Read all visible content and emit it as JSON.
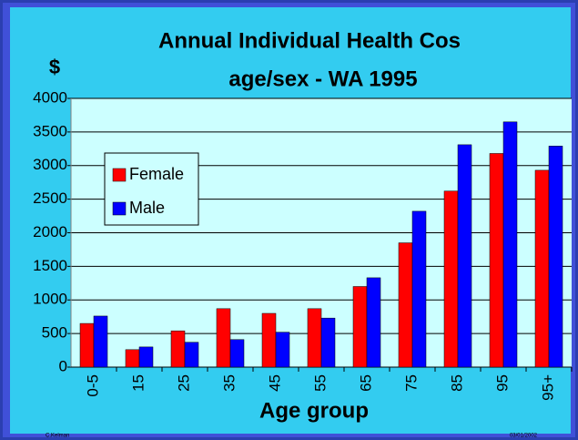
{
  "chart_data": {
    "type": "bar",
    "title_lines": [
      "Annual Individual Health Cos",
      "age/sex - WA 1995"
    ],
    "y_label": "$",
    "x_label": "Age group",
    "categories": [
      "0-5",
      "15",
      "25",
      "35",
      "45",
      "55",
      "65",
      "75",
      "85",
      "95",
      "95+"
    ],
    "series": [
      {
        "name": "Female",
        "color": "#ff0000",
        "values": [
          650,
          260,
          540,
          870,
          800,
          870,
          1200,
          1850,
          2620,
          3180,
          2930
        ]
      },
      {
        "name": "Male",
        "color": "#0000ff",
        "values": [
          760,
          300,
          370,
          410,
          520,
          730,
          1330,
          2320,
          3310,
          3650,
          3290
        ]
      }
    ],
    "ylim": [
      0,
      4000
    ],
    "yticks": [
      0,
      500,
      1000,
      1500,
      2000,
      2500,
      3000,
      3500,
      4000
    ],
    "grid": true,
    "footer": {
      "author": "C.Kelman",
      "date": "03/01/2002"
    }
  }
}
